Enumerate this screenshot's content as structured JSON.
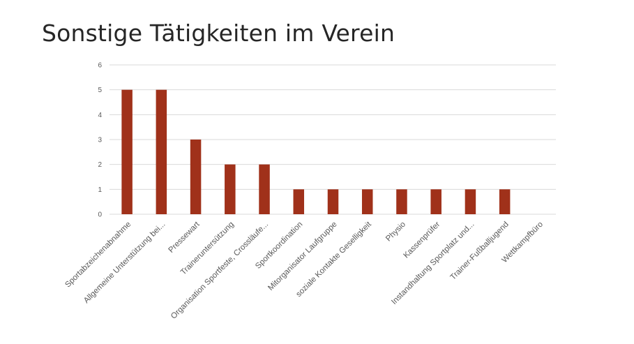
{
  "title": "Sonstige Tätigkeiten im Verein",
  "colors": {
    "bar": "#A0311A",
    "grid": "#D9D9D9",
    "text": "#595959",
    "title": "#262626"
  },
  "chart_data": {
    "type": "bar",
    "title": "Sonstige Tätigkeiten im Verein",
    "categories": [
      "Sportabzeichenabnahme",
      "Allgemeine Unterstützung bei...",
      "Pressewart",
      "Traineruntersützung",
      "Organisation Sportfeste, Crossläufe...",
      "Sportkoordination",
      "Mitorganisator Laufgruppe",
      "soziale Kontakte Geselligkeit",
      "Physio",
      "Kassenprüfer",
      "Instandhaltung Sportplatz und...",
      "Trainer-Fußballjugend",
      "Wettkampfbüro"
    ],
    "values": [
      5,
      5,
      3,
      2,
      2,
      1,
      1,
      1,
      1,
      1,
      1,
      1,
      0
    ],
    "xlabel": "",
    "ylabel": "",
    "ylim": [
      0,
      6
    ],
    "yticks": [
      0,
      1,
      2,
      3,
      4,
      5,
      6
    ],
    "grid": true,
    "legend": "none"
  }
}
